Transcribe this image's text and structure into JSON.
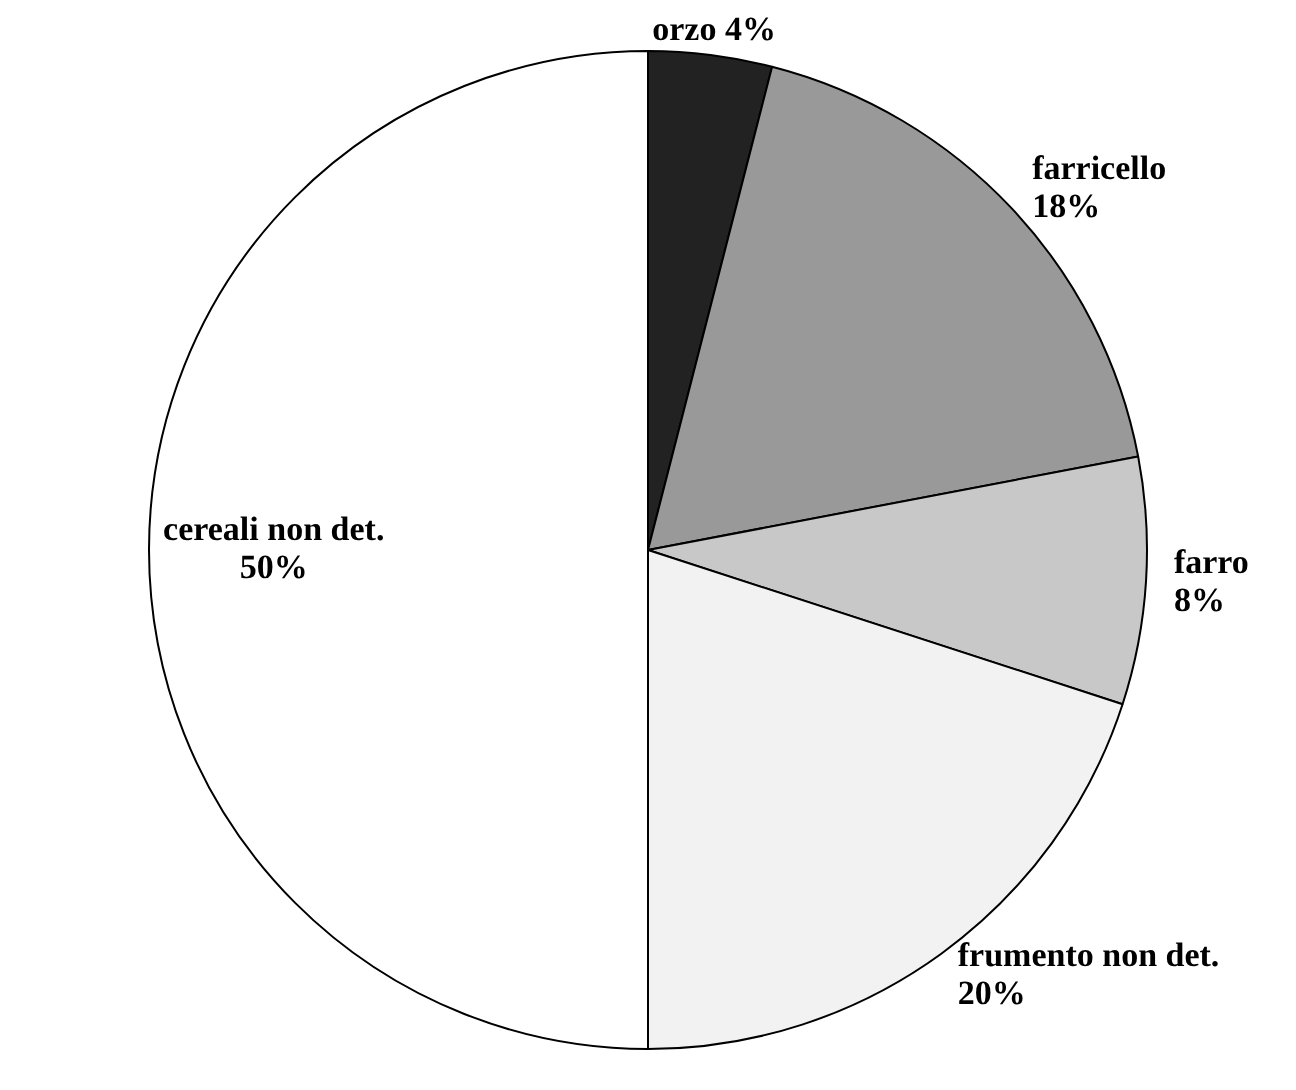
{
  "chart_data": {
    "type": "pie",
    "categories": [
      "orzo",
      "farricello",
      "farro",
      "frumento non det.",
      "cereali non det."
    ],
    "values": [
      4,
      18,
      8,
      20,
      50
    ],
    "colors": [
      "#222222",
      "#999999",
      "#c8c8c8",
      "#f2f2f2",
      "#ffffff"
    ],
    "value_labels": [
      "4%",
      "18%",
      "8%",
      "20%",
      "50%"
    ],
    "legend": false
  }
}
